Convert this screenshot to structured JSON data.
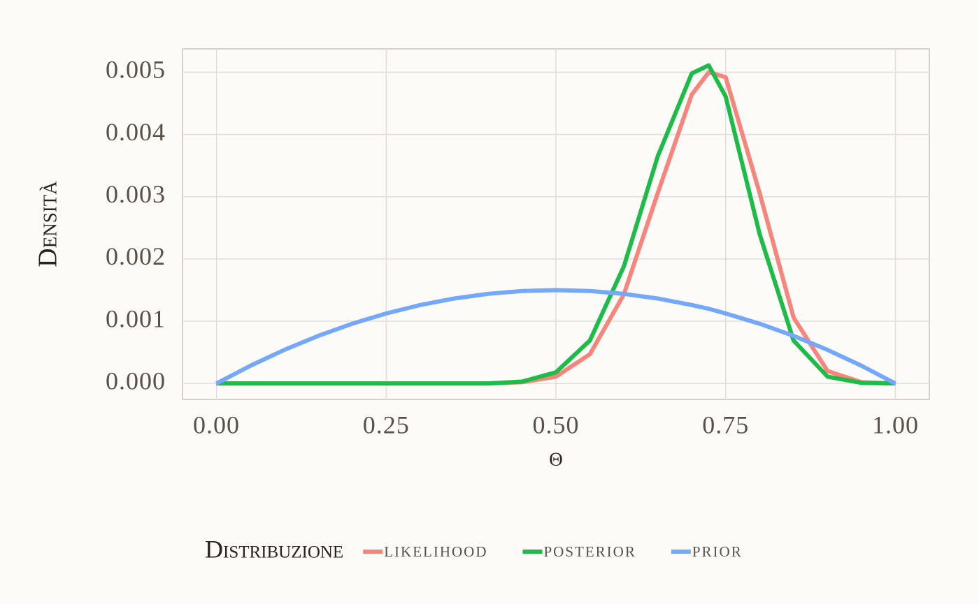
{
  "chart_data": {
    "type": "line",
    "x_label": "θ",
    "y_label": "Densità",
    "legend_title": "Distribuzione",
    "legend_position": "bottom",
    "grid": true,
    "x": [
      0,
      0.05,
      0.1,
      0.15,
      0.2,
      0.25,
      0.3,
      0.35,
      0.4,
      0.45,
      0.5,
      0.55,
      0.6,
      0.65,
      0.7,
      0.725,
      0.75,
      0.8,
      0.85,
      0.9,
      0.95,
      1
    ],
    "series": [
      {
        "name": "likelihood",
        "color": "#f8857c",
        "values": [
          0,
          0,
          0,
          0,
          0,
          0,
          0,
          0,
          0,
          2e-05,
          0.00011,
          0.00047,
          0.00143,
          0.00306,
          0.00464,
          0.005,
          0.00492,
          0.00306,
          0.00106,
          0.0002,
          2e-05,
          0
        ]
      },
      {
        "name": "posterior",
        "color": "#1dbb48",
        "values": [
          0,
          0,
          0,
          0,
          0,
          0,
          0,
          0,
          0,
          3e-05,
          0.00018,
          0.00069,
          0.00188,
          0.00365,
          0.00498,
          0.00511,
          0.00461,
          0.0024,
          0.00069,
          0.00011,
          1e-05,
          0
        ]
      },
      {
        "name": "prior",
        "color": "#74a8ff",
        "values": [
          0,
          0.000285,
          0.00054,
          0.000765,
          0.00096,
          0.001125,
          0.00126,
          0.001365,
          0.00144,
          0.001485,
          0.0015,
          0.001485,
          0.00144,
          0.001365,
          0.00126,
          0.0012,
          0.001125,
          0.00096,
          0.000765,
          0.00054,
          0.000285,
          0
        ]
      }
    ],
    "xlim": [
      -0.05,
      1.05
    ],
    "xticks": [
      {
        "value": 0,
        "label": "0.00"
      },
      0.25,
      {
        "value": 0.5,
        "label": "0.50"
      },
      0.75,
      {
        "value": 1,
        "label": "1.00"
      }
    ],
    "ylim": [
      -0.000256,
      0.005375
    ],
    "yticks": [
      {
        "value": 0,
        "label": "0.000"
      },
      0.001,
      0.002,
      0.003,
      0.004,
      0.005
    ]
  }
}
